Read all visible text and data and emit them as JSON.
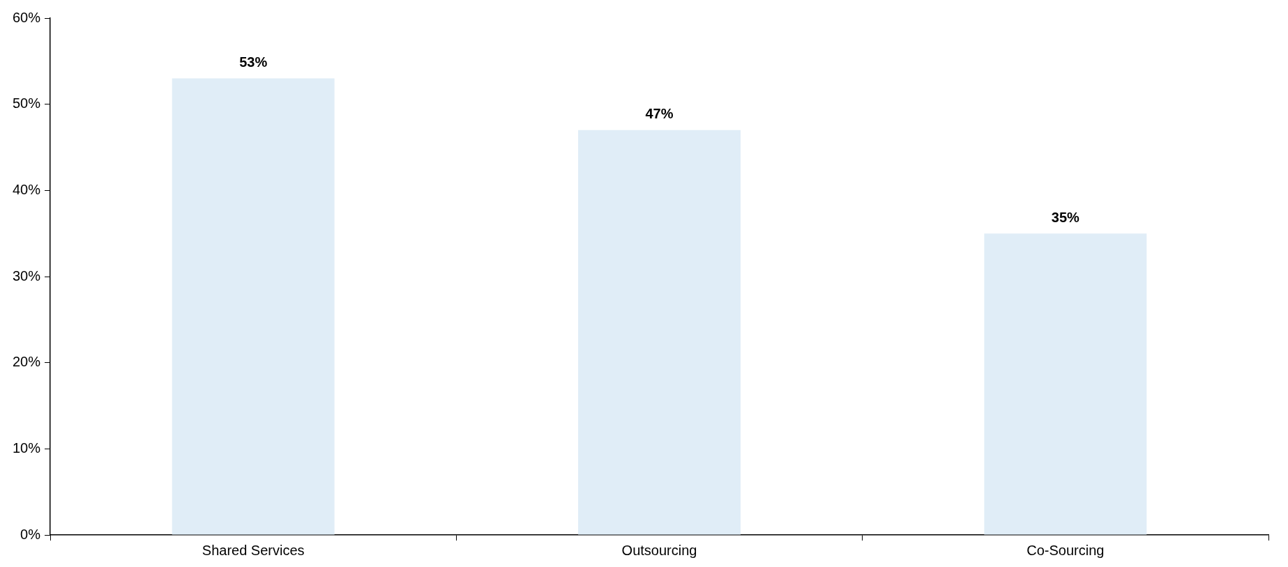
{
  "chart_data": {
    "type": "bar",
    "categories": [
      "Shared Services",
      "Outsourcing",
      "Co-Sourcing"
    ],
    "values": [
      53,
      47,
      35
    ],
    "color": "#e0edf7",
    "value_labels": [
      "53%",
      "47%",
      "35%"
    ],
    "ylim": [
      0,
      60
    ],
    "yticks": [
      {
        "value": 0,
        "label": "0%"
      },
      {
        "value": 10,
        "label": "10%"
      },
      {
        "value": 20,
        "label": "20%"
      },
      {
        "value": 30,
        "label": "30%"
      },
      {
        "value": 40,
        "label": "40%"
      },
      {
        "value": 50,
        "label": "50%"
      },
      {
        "value": 60,
        "label": "60%"
      }
    ],
    "grid": false,
    "legend": false
  }
}
